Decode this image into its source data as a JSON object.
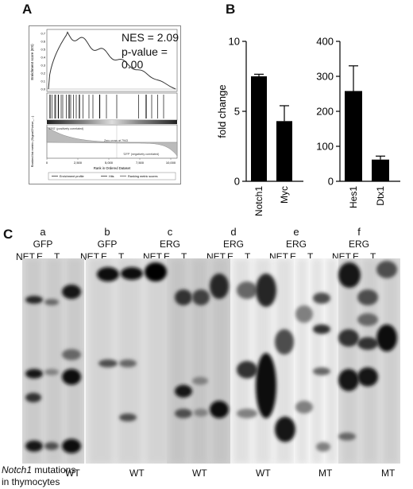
{
  "panels": {
    "a_label": "A",
    "b_label": "B",
    "c_label": "C"
  },
  "gsea": {
    "nes": "NES = 2.09",
    "pvalue": "p-value = 0.00",
    "enrichment_yticks": [
      "0.7",
      "0.6",
      "0.5",
      "0.4",
      "0.3",
      "0.2",
      "0.1",
      "0.0"
    ],
    "enrichment_ylabel": "Enrichment score (ES)",
    "metric_ylabel": "Ranked list metric (Signal2Noise_...)",
    "pos_label": "'ERG' (positively correlated)",
    "neg_label": "'GFP' (negatively correlated)",
    "zero_label": "Zero cross at 7943",
    "xlabel": "Rank in Ordered Dataset",
    "xticks": [
      "0",
      "2,500",
      "5,000",
      "7,500",
      "10,000"
    ],
    "legend": [
      "Enrichment profile",
      "Hits",
      "Ranking metric scores"
    ]
  },
  "chart_data": [
    {
      "type": "bar",
      "categories": [
        "Notch1",
        "Myc"
      ],
      "values": [
        7.5,
        4.3
      ],
      "errors": [
        0.15,
        1.1
      ],
      "ylabel": "fold change",
      "ylim": [
        0,
        10
      ],
      "yticks": [
        0,
        5,
        10
      ],
      "color": "#000000"
    },
    {
      "type": "bar",
      "categories": [
        "Hes1",
        "Dtx1"
      ],
      "values": [
        258,
        62
      ],
      "errors": [
        72,
        10
      ],
      "ylabel": "",
      "ylim": [
        0,
        400
      ],
      "yticks": [
        0,
        100,
        200,
        300,
        400
      ],
      "color": "#000000"
    }
  ],
  "gel": {
    "groups": [
      {
        "letter": "a",
        "condition": "GFP",
        "lanes": [
          "NET",
          "E",
          "T"
        ],
        "mutation": "WT"
      },
      {
        "letter": "b",
        "condition": "GFP",
        "lanes": [
          "NET",
          "E",
          "T"
        ],
        "mutation": "WT"
      },
      {
        "letter": "c",
        "condition": "ERG",
        "lanes": [
          "NET",
          "E",
          "T"
        ],
        "mutation": "WT"
      },
      {
        "letter": "d",
        "condition": "ERG",
        "lanes": [
          "NET",
          "E",
          "T"
        ],
        "mutation": "WT"
      },
      {
        "letter": "e",
        "condition": "ERG",
        "lanes": [
          "NET",
          "E",
          "T"
        ],
        "mutation": "MT"
      },
      {
        "letter": "f",
        "condition": "ERG",
        "lanes": [
          "NET",
          "E",
          "T"
        ],
        "mutation": "MT"
      }
    ],
    "mutation_gene": "Notch1",
    "mutation_text1": " mutations",
    "mutation_text2": "in thymocytes"
  }
}
